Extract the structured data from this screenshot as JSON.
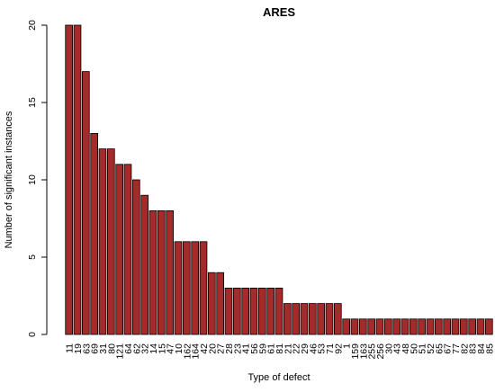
{
  "chart_data": {
    "type": "bar",
    "title": "ARES",
    "xlabel": "Type of defect",
    "ylabel": "Number of significant instances",
    "ylim": [
      0,
      20
    ],
    "yticks": [
      0,
      5,
      10,
      15,
      20
    ],
    "grid": false,
    "bar_color": "#a52a2a",
    "bar_edge_color": "#000000",
    "categories": [
      "11",
      "19",
      "63",
      "69",
      "31",
      "80",
      "121",
      "64",
      "62",
      "32",
      "14",
      "15",
      "47",
      "10",
      "162",
      "164",
      "42",
      "20",
      "27",
      "28",
      "23",
      "41",
      "56",
      "59",
      "61",
      "81",
      "21",
      "22",
      "29",
      "46",
      "53",
      "71",
      "92",
      "1",
      "159",
      "163",
      "255",
      "256",
      "30",
      "43",
      "48",
      "50",
      "51",
      "52",
      "65",
      "67",
      "77",
      "82",
      "83",
      "84",
      "85"
    ],
    "values": [
      20,
      20,
      17,
      13,
      12,
      12,
      11,
      11,
      10,
      9,
      8,
      8,
      8,
      6,
      6,
      6,
      6,
      4,
      4,
      3,
      3,
      3,
      3,
      3,
      3,
      3,
      2,
      2,
      2,
      2,
      2,
      2,
      2,
      1,
      1,
      1,
      1,
      1,
      1,
      1,
      1,
      1,
      1,
      1,
      1,
      1,
      1,
      1,
      1,
      1,
      1
    ]
  }
}
